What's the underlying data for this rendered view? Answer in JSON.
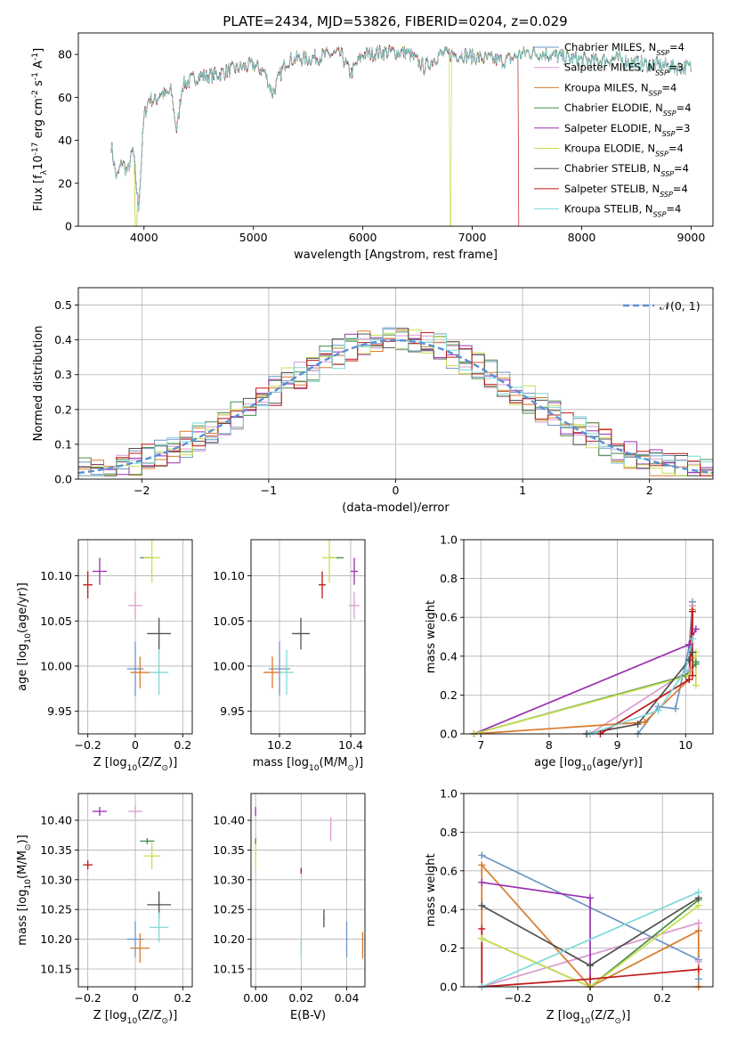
{
  "figure": {
    "title": "PLATE=2434, MJD=53826, FIBERID=0204, z=0.029"
  },
  "series": [
    {
      "name": "Chabrier MILES, N$_{SSP}$=4",
      "label_main": "Chabrier MILES, N",
      "label_sub": "SSP",
      "label_end": "=4",
      "color": "#6e95c4"
    },
    {
      "name": "Salpeter MILES, N$_{SSP}$=3",
      "label_main": "Salpeter MILES, N",
      "label_sub": "SSP",
      "label_end": "=3",
      "color": "#d99cd0"
    },
    {
      "name": "Kroupa MILES, N$_{SSP}$=4",
      "label_main": "Kroupa MILES, N",
      "label_sub": "SSP",
      "label_end": "=4",
      "color": "#d97b2a"
    },
    {
      "name": "Chabrier ELODIE, N$_{SSP}$=4",
      "label_main": "Chabrier ELODIE, N",
      "label_sub": "SSP",
      "label_end": "=4",
      "color": "#4a8a4a"
    },
    {
      "name": "Salpeter ELODIE, N$_{SSP}$=3",
      "label_main": "Salpeter ELODIE, N",
      "label_sub": "SSP",
      "label_end": "=3",
      "color": "#9b30b0"
    },
    {
      "name": "Kroupa ELODIE, N$_{SSP}$=4",
      "label_main": "Kroupa ELODIE, N",
      "label_sub": "SSP",
      "label_end": "=4",
      "color": "#c6e050"
    },
    {
      "name": "Chabrier STELIB, N$_{SSP}$=4",
      "label_main": "Chabrier STELIB, N",
      "label_sub": "SSP",
      "label_end": "=4",
      "color": "#505050"
    },
    {
      "name": "Salpeter STELIB, N$_{SSP}$=4",
      "label_main": "Salpeter STELIB, N",
      "label_sub": "SSP",
      "label_end": "=4",
      "color": "#c01818"
    },
    {
      "name": "Kroupa STELIB, N$_{SSP}$=4",
      "label_main": "Kroupa STELIB, N",
      "label_sub": "SSP",
      "label_end": "=4",
      "color": "#7fd8d8"
    }
  ],
  "chart_data": [
    {
      "id": "spectrum",
      "type": "line",
      "xlabel": "wavelength [Angstrom, rest frame]",
      "ylabel": "Flux [f$_\\lambda$10$^{-17}$ erg cm$^{-2}$ s$^{-1}$ A$^{-1}$]",
      "xlim": [
        3400,
        9200
      ],
      "ylim": [
        0,
        90
      ],
      "xticks": [
        4000,
        5000,
        6000,
        7000,
        8000,
        9000
      ],
      "yticks": [
        0,
        20,
        40,
        60,
        80
      ],
      "x": [
        3700,
        3750,
        3800,
        3850,
        3900,
        3950,
        4000,
        4050,
        4100,
        4150,
        4200,
        4250,
        4300,
        4350,
        4400,
        4500,
        4600,
        4700,
        4800,
        4900,
        5000,
        5100,
        5175,
        5300,
        5400,
        5500,
        5600,
        5700,
        5800,
        5890,
        6000,
        6200,
        6400,
        6563,
        6700,
        6900,
        7100,
        7300,
        7500,
        7700,
        7900,
        8100,
        8300,
        8500,
        8700,
        8900,
        9000
      ],
      "flux": [
        38,
        22,
        30,
        25,
        36,
        8,
        51,
        60,
        58,
        62,
        61,
        63,
        44,
        66,
        67,
        70,
        70,
        71,
        73,
        74,
        75,
        72,
        62,
        77,
        78,
        78,
        79,
        80,
        80,
        71,
        80,
        81,
        81,
        74,
        80,
        80,
        78,
        77,
        81,
        80,
        78,
        77,
        78,
        76,
        75,
        74,
        74
      ],
      "legend_loc": "right"
    },
    {
      "id": "residuals",
      "type": "histogram",
      "xlabel": "(data-model)/error",
      "ylabel": "Normed distribution",
      "xlim": [
        -2.5,
        2.5
      ],
      "ylim": [
        0,
        0.55
      ],
      "xticks": [
        -2,
        -1,
        0,
        1,
        2
      ],
      "yticks": [
        0.0,
        0.1,
        0.2,
        0.3,
        0.4,
        0.5
      ],
      "grid": true,
      "reference_curve": "$\\mathcal{N}(0,1)$",
      "reference_label": "𝒩(0, 1)",
      "legend_loc": "upper right"
    },
    {
      "id": "age_vs_Z",
      "type": "scatter",
      "xlabel": "Z [log$_{10}$(Z/Z$_\\odot$)]",
      "ylabel": "age  [log$_{10}$(age/yr)]",
      "xlim": [
        -0.24,
        0.24
      ],
      "ylim": [
        9.925,
        10.14
      ],
      "xticks": [
        -0.2,
        0.0,
        0.2
      ],
      "yticks": [
        9.95,
        10.0,
        10.05,
        10.1
      ],
      "grid": true,
      "points": [
        {
          "x": 0.0,
          "y": 9.997,
          "xerr": 0.07,
          "yerr": 0.06
        },
        {
          "x": 0.0,
          "y": 10.067,
          "xerr": 0.06,
          "yerr": 0.03
        },
        {
          "x": 0.02,
          "y": 9.993,
          "xerr": 0.08,
          "yerr": 0.035
        },
        {
          "x": 0.05,
          "y": 10.12,
          "xerr": 0.06,
          "yerr": 0.0
        },
        {
          "x": -0.15,
          "y": 10.105,
          "xerr": 0.06,
          "yerr": 0.03
        },
        {
          "x": 0.07,
          "y": 10.12,
          "xerr": 0.07,
          "yerr": 0.055
        },
        {
          "x": 0.1,
          "y": 10.036,
          "xerr": 0.1,
          "yerr": 0.035
        },
        {
          "x": -0.2,
          "y": 10.09,
          "xerr": 0.04,
          "yerr": 0.03
        },
        {
          "x": 0.1,
          "y": 9.993,
          "xerr": 0.08,
          "yerr": 0.05
        }
      ]
    },
    {
      "id": "age_vs_mass",
      "type": "scatter",
      "xlabel": "mass [log$_{10}$(M/M$_\\odot$)]",
      "ylabel": "",
      "xlim": [
        10.12,
        10.44
      ],
      "ylim": [
        9.925,
        10.14
      ],
      "xticks": [
        10.2,
        10.4
      ],
      "yticks": [
        9.95,
        10.0,
        10.05,
        10.1
      ],
      "grid": true,
      "points": [
        {
          "x": 10.2,
          "y": 9.997,
          "xerr": 0.06,
          "yerr": 0.06
        },
        {
          "x": 10.41,
          "y": 10.067,
          "xerr": 0.03,
          "yerr": 0.03
        },
        {
          "x": 10.18,
          "y": 9.993,
          "xerr": 0.05,
          "yerr": 0.035
        },
        {
          "x": 10.36,
          "y": 10.12,
          "xerr": 0.04,
          "yerr": 0.0
        },
        {
          "x": 10.41,
          "y": 10.105,
          "xerr": 0.02,
          "yerr": 0.03
        },
        {
          "x": 10.34,
          "y": 10.12,
          "xerr": 0.04,
          "yerr": 0.055
        },
        {
          "x": 10.26,
          "y": 10.036,
          "xerr": 0.05,
          "yerr": 0.035
        },
        {
          "x": 10.32,
          "y": 10.09,
          "xerr": 0.02,
          "yerr": 0.03
        },
        {
          "x": 10.22,
          "y": 9.993,
          "xerr": 0.04,
          "yerr": 0.05
        }
      ]
    },
    {
      "id": "mass_weight_vs_age",
      "type": "line",
      "xlabel": "age  [log$_{10}$(age/yr)]",
      "ylabel": "mass weight",
      "xlim": [
        6.75,
        10.4
      ],
      "ylim": [
        0.0,
        1.0
      ],
      "xticks": [
        7,
        8,
        9,
        10
      ],
      "yticks": [
        0.0,
        0.2,
        0.4,
        0.6,
        0.8,
        1.0
      ],
      "grid": true,
      "curves": [
        {
          "x": [
            9.3,
            9.6,
            9.85,
            10.05,
            10.1
          ],
          "y": [
            0.0,
            0.14,
            0.13,
            0.45,
            0.68
          ]
        },
        {
          "x": [
            8.6,
            10.05,
            10.1
          ],
          "y": [
            0.0,
            0.33,
            0.66
          ]
        },
        {
          "x": [
            6.9,
            9.4,
            10.05,
            10.1
          ],
          "y": [
            0.0,
            0.06,
            0.28,
            0.64
          ]
        },
        {
          "x": [
            6.9,
            10.0,
            10.15,
            10.15
          ],
          "y": [
            0.0,
            0.3,
            0.36,
            0.37
          ]
        },
        {
          "x": [
            6.9,
            10.05,
            10.15
          ],
          "y": [
            0.0,
            0.46,
            0.54
          ]
        },
        {
          "x": [
            6.9,
            10.05,
            10.15,
            10.15
          ],
          "y": [
            0.0,
            0.3,
            0.42,
            0.25
          ]
        },
        {
          "x": [
            8.55,
            9.3,
            10.05,
            10.1
          ],
          "y": [
            0.0,
            0.05,
            0.38,
            0.42
          ]
        },
        {
          "x": [
            8.75,
            10.05,
            10.1,
            10.1
          ],
          "y": [
            0.0,
            0.28,
            0.63,
            0.3
          ]
        },
        {
          "x": [
            8.6,
            9.6,
            10.0,
            10.1
          ],
          "y": [
            0.0,
            0.12,
            0.33,
            0.49
          ]
        }
      ]
    },
    {
      "id": "mass_vs_Z",
      "type": "scatter",
      "xlabel": "Z [log$_{10}$(Z/Z$_\\odot$)]",
      "ylabel": "mass [log$_{10}$(M/M$_\\odot$)]",
      "xlim": [
        -0.24,
        0.24
      ],
      "ylim": [
        10.12,
        10.445
      ],
      "xticks": [
        -0.2,
        0.0,
        0.2
      ],
      "yticks": [
        10.15,
        10.2,
        10.25,
        10.3,
        10.35,
        10.4
      ],
      "grid": true,
      "points": [
        {
          "x": 0.0,
          "y": 10.2,
          "xerr": 0.07,
          "yerr": 0.06
        },
        {
          "x": 0.0,
          "y": 10.415,
          "xerr": 0.06,
          "yerr": 0.02
        },
        {
          "x": 0.02,
          "y": 10.185,
          "xerr": 0.08,
          "yerr": 0.05
        },
        {
          "x": 0.05,
          "y": 10.365,
          "xerr": 0.06,
          "yerr": 0.01
        },
        {
          "x": -0.15,
          "y": 10.415,
          "xerr": 0.06,
          "yerr": 0.015
        },
        {
          "x": 0.07,
          "y": 10.34,
          "xerr": 0.07,
          "yerr": 0.045
        },
        {
          "x": 0.1,
          "y": 10.258,
          "xerr": 0.1,
          "yerr": 0.045
        },
        {
          "x": -0.2,
          "y": 10.325,
          "xerr": 0.04,
          "yerr": 0.015
        },
        {
          "x": 0.1,
          "y": 10.22,
          "xerr": 0.08,
          "yerr": 0.05
        }
      ]
    },
    {
      "id": "mass_vs_EBV",
      "type": "scatter",
      "xlabel": "E(B-V)",
      "ylabel": "",
      "xlim": [
        -0.002,
        0.048
      ],
      "ylim": [
        10.12,
        10.445
      ],
      "xticks": [
        0.0,
        0.02,
        0.04
      ],
      "yticks": [
        10.15,
        10.2,
        10.25,
        10.3,
        10.35,
        10.4
      ],
      "grid": true,
      "points": [
        {
          "x": 0.04,
          "y": 10.2,
          "xerr": 0.0,
          "yerr": 0.06
        },
        {
          "x": 0.033,
          "y": 10.385,
          "xerr": 0.0,
          "yerr": 0.04
        },
        {
          "x": 0.047,
          "y": 10.19,
          "xerr": 0.0,
          "yerr": 0.045
        },
        {
          "x": 0.0,
          "y": 10.365,
          "xerr": 0.0,
          "yerr": 0.01
        },
        {
          "x": 0.0,
          "y": 10.415,
          "xerr": 0.0,
          "yerr": 0.015
        },
        {
          "x": 0.0,
          "y": 10.34,
          "xerr": 0.0,
          "yerr": 0.04
        },
        {
          "x": 0.03,
          "y": 10.235,
          "xerr": 0.0,
          "yerr": 0.03
        },
        {
          "x": 0.02,
          "y": 10.315,
          "xerr": 0.0,
          "yerr": 0.01
        },
        {
          "x": 0.02,
          "y": 10.185,
          "xerr": 0.0,
          "yerr": 0.025
        }
      ]
    },
    {
      "id": "mass_weight_vs_Z",
      "type": "line",
      "xlabel": "Z [log$_{10}$(Z/Z$_\\odot$)]",
      "ylabel": "mass weight",
      "xlim": [
        -0.35,
        0.34
      ],
      "ylim": [
        0.0,
        1.0
      ],
      "xticks": [
        -0.2,
        0.0,
        0.2
      ],
      "yticks": [
        0.0,
        0.2,
        0.4,
        0.6,
        0.8,
        1.0
      ],
      "grid": true,
      "curves": [
        {
          "x": [
            -0.3,
            0.3,
            0.3
          ],
          "y": [
            0.68,
            0.14,
            0.04
          ]
        },
        {
          "x": [
            -0.3,
            0.3,
            0.3
          ],
          "y": [
            0.0,
            0.33,
            0.13
          ]
        },
        {
          "x": [
            -0.3,
            -0.3,
            0.0,
            0.3,
            0.3
          ],
          "y": [
            0.0,
            0.63,
            0.0,
            0.29,
            0.0
          ]
        },
        {
          "x": [
            -0.3,
            0.0,
            0.3
          ],
          "y": [
            0.25,
            0.0,
            0.45
          ]
        },
        {
          "x": [
            -0.3,
            0.0,
            0.0
          ],
          "y": [
            0.54,
            0.46,
            0.0
          ]
        },
        {
          "x": [
            -0.3,
            0.0,
            0.3
          ],
          "y": [
            0.25,
            0.0,
            0.42
          ]
        },
        {
          "x": [
            -0.3,
            0.0,
            0.3
          ],
          "y": [
            0.42,
            0.11,
            0.46
          ]
        },
        {
          "x": [
            -0.3,
            -0.3,
            0.0,
            0.3
          ],
          "y": [
            0.3,
            0.0,
            0.04,
            0.09
          ]
        },
        {
          "x": [
            -0.3,
            0.3
          ],
          "y": [
            0.0,
            0.49
          ]
        }
      ]
    }
  ]
}
